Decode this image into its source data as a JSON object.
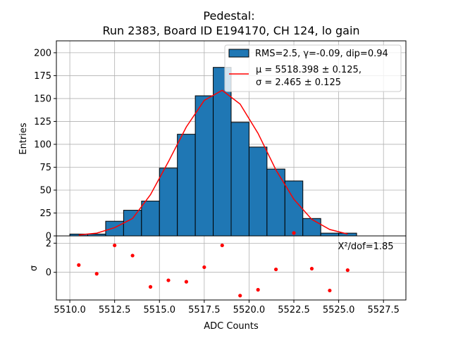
{
  "chart_data": [
    {
      "type": "bar",
      "title_line1": "Pedestal:",
      "title_line2": "Run 2383, Board ID E194170, CH 124, lo gain",
      "xlabel": "",
      "ylabel": "Entries",
      "xlim": [
        5509.25,
        5528.75
      ],
      "ylim": [
        0,
        213
      ],
      "yticks": [
        0,
        25,
        50,
        75,
        100,
        125,
        150,
        175,
        200
      ],
      "grid": true,
      "legend_position": "top-right",
      "bar_color": "#1f77b4",
      "fit_color": "#ff0000",
      "bins": {
        "edges": [
          5510,
          5511,
          5512,
          5513,
          5514,
          5515,
          5516,
          5517,
          5518,
          5519,
          5520,
          5521,
          5522,
          5523,
          5524,
          5525,
          5526
        ],
        "counts": [
          2,
          2,
          16,
          28,
          38,
          74,
          111,
          153,
          184,
          124,
          97,
          73,
          60,
          19,
          3,
          3
        ]
      },
      "fit": {
        "x": [
          5510.5,
          5511.5,
          5512.5,
          5513.5,
          5514.5,
          5515.5,
          5516.5,
          5517.5,
          5518.5,
          5519.5,
          5520.5,
          5521.5,
          5522.5,
          5523.5,
          5524.5,
          5525.5
        ],
        "y": [
          1,
          3,
          9,
          19,
          45,
          81,
          119,
          148,
          159,
          144,
          112,
          72,
          40,
          18,
          7,
          2
        ]
      },
      "legend": {
        "hist_label": "RMS=2.5, γ=-0.09, dip=0.94",
        "fit_label_line1": "μ = 5518.398 ± 0.125,",
        "fit_label_line2": "σ = 2.465 ± 0.125"
      }
    },
    {
      "type": "scatter",
      "xlabel": "ADC Counts",
      "ylabel": "σ",
      "xlim": [
        5509.25,
        5528.75
      ],
      "ylim": [
        -1.9,
        2.5
      ],
      "yticks": [
        0,
        2
      ],
      "xticks": [
        5510.0,
        5512.5,
        5515.0,
        5517.5,
        5520.0,
        5522.5,
        5525.0,
        5527.5
      ],
      "xtick_labels": [
        "5510.0",
        "5512.5",
        "5515.0",
        "5517.5",
        "5520.0",
        "5522.5",
        "5525.0",
        "5527.5"
      ],
      "annotation": "X²/dof=1.85",
      "point_color": "#ff0000",
      "x": [
        5510.5,
        5511.5,
        5512.5,
        5513.5,
        5514.5,
        5515.5,
        5516.5,
        5517.5,
        5518.5,
        5519.5,
        5520.5,
        5521.5,
        5522.5,
        5523.5,
        5524.5,
        5525.5
      ],
      "y": [
        0.5,
        -0.1,
        1.85,
        1.15,
        -1.0,
        -0.55,
        -0.65,
        0.35,
        1.85,
        -1.6,
        -1.2,
        0.2,
        2.7,
        0.25,
        -1.25,
        0.15
      ]
    }
  ]
}
